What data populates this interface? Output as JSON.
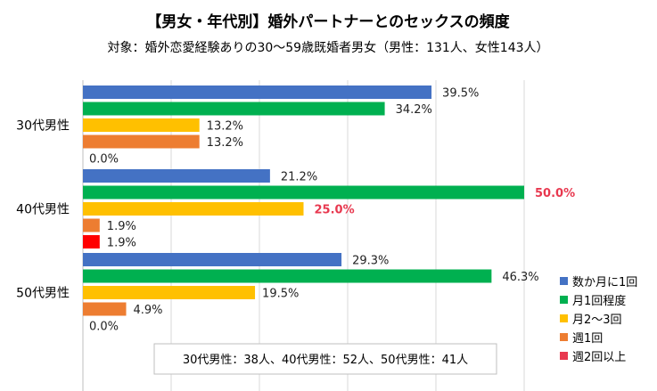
{
  "chart_data": {
    "type": "bar",
    "orientation": "horizontal",
    "title": "【男女・年代別】婚外パートナーとのセックスの頻度",
    "subtitle": "対象：婚外恋愛経験ありの30～59歳既婚者男女（男性：131人、女性143人）",
    "categories": [
      "30代男性",
      "40代男性",
      "50代男性"
    ],
    "series": [
      {
        "name": "数か月に1回",
        "color": "#4472c4",
        "values": [
          39.5,
          21.2,
          29.3
        ],
        "labels": [
          "39.5%",
          "21.2%",
          "29.3%"
        ]
      },
      {
        "name": "月1回程度",
        "color": "#00b050",
        "values": [
          34.2,
          50.0,
          46.3
        ],
        "labels": [
          "34.2%",
          "50.0%",
          "46.3%"
        ]
      },
      {
        "name": "月2～3回",
        "color": "#ffc000",
        "values": [
          13.2,
          25.0,
          19.5
        ],
        "labels": [
          "13.2%",
          "25.0%",
          "19.5%"
        ]
      },
      {
        "name": "週1回",
        "color": "#ed7d31",
        "values": [
          13.2,
          1.9,
          4.9
        ],
        "labels": [
          "13.2%",
          "1.9%",
          "4.9%"
        ]
      },
      {
        "name": "週2回以上",
        "color": "#ff0000",
        "values": [
          0.0,
          1.9,
          0.0
        ],
        "labels": [
          "0.0%",
          "1.9%",
          "0.0%"
        ]
      }
    ],
    "legend_colors": [
      "#4472c4",
      "#00b050",
      "#ffc000",
      "#ed7d31",
      "#e8384f"
    ],
    "highlight_labels": [
      [
        1,
        1
      ],
      [
        2,
        1
      ]
    ],
    "highlight_color": "#e8384f",
    "xlim": [
      0,
      55
    ],
    "grid": true,
    "legend_position": "bottom-right",
    "note": "30代男性：38人、40代男性：52人、50代男性：41人"
  }
}
